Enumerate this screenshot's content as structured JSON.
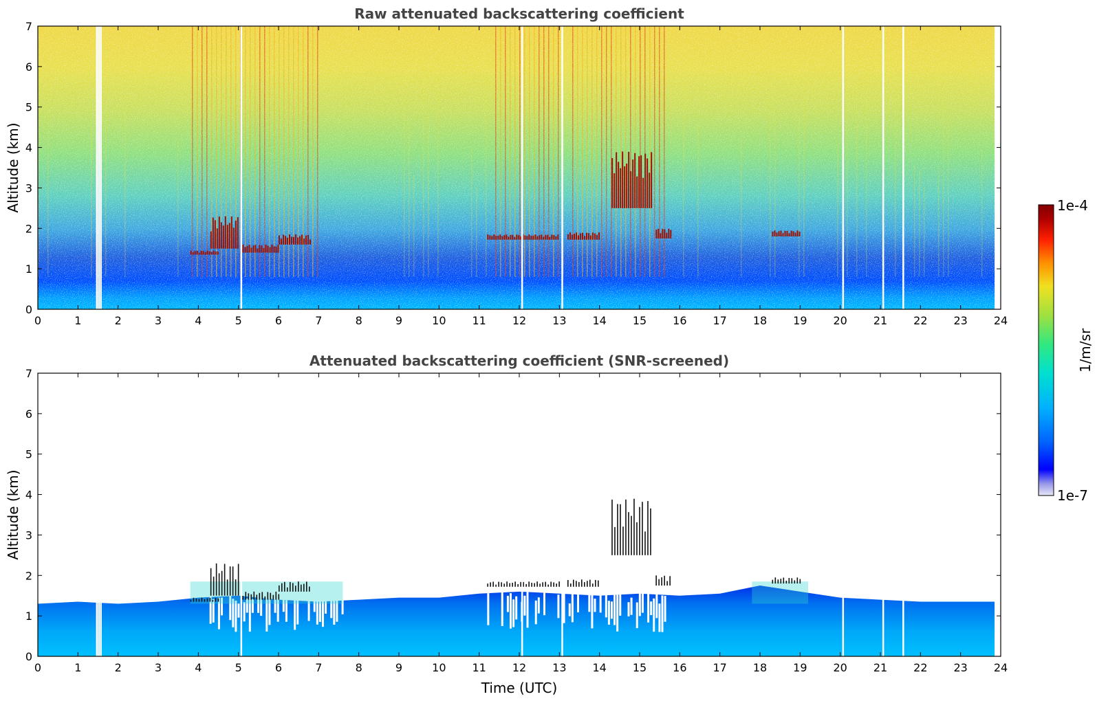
{
  "chart_data": [
    {
      "type": "heatmap",
      "title": "Raw attenuated backscattering coefficient",
      "xlabel": "",
      "ylabel": "Altitude (km)",
      "xlim": [
        0,
        24
      ],
      "ylim": [
        0,
        7
      ],
      "x_ticks": [
        0,
        1,
        2,
        3,
        4,
        5,
        6,
        7,
        8,
        9,
        10,
        11,
        12,
        13,
        14,
        15,
        16,
        17,
        18,
        19,
        20,
        21,
        22,
        23,
        24
      ],
      "y_ticks": [
        0,
        1,
        2,
        3,
        4,
        5,
        6,
        7
      ],
      "data_gaps_utc": [
        1.45,
        1.5,
        1.55,
        5.05,
        12.05,
        13.05,
        20.05,
        21.05,
        21.55,
        23.85
      ],
      "cloud_layers": [
        {
          "start": 3.8,
          "end": 4.5,
          "base_km": 1.35,
          "top_km": 1.45
        },
        {
          "start": 4.3,
          "end": 5.0,
          "base_km": 1.5,
          "top_km": 2.3
        },
        {
          "start": 5.1,
          "end": 6.0,
          "base_km": 1.4,
          "top_km": 1.6
        },
        {
          "start": 6.0,
          "end": 6.8,
          "base_km": 1.6,
          "top_km": 1.85
        },
        {
          "start": 11.2,
          "end": 13.0,
          "base_km": 1.72,
          "top_km": 1.85
        },
        {
          "start": 13.2,
          "end": 14.0,
          "base_km": 1.72,
          "top_km": 1.9
        },
        {
          "start": 14.3,
          "end": 15.3,
          "base_km": 2.5,
          "top_km": 3.9
        },
        {
          "start": 15.4,
          "end": 15.8,
          "base_km": 1.75,
          "top_km": 2.0
        },
        {
          "start": 18.3,
          "end": 19.0,
          "base_km": 1.8,
          "top_km": 1.95
        }
      ]
    },
    {
      "type": "heatmap",
      "title": "Attenuated backscattering coefficient (SNR-screened)",
      "xlabel": "Time (UTC)",
      "ylabel": "Altitude (km)",
      "xlim": [
        0,
        24
      ],
      "ylim": [
        0,
        7
      ],
      "x_ticks": [
        0,
        1,
        2,
        3,
        4,
        5,
        6,
        7,
        8,
        9,
        10,
        11,
        12,
        13,
        14,
        15,
        16,
        17,
        18,
        19,
        20,
        21,
        22,
        23,
        24
      ],
      "y_ticks": [
        0,
        1,
        2,
        3,
        4,
        5,
        6,
        7
      ],
      "data_gaps_utc": [
        1.45,
        1.5,
        1.55,
        5.05,
        12.05,
        13.05,
        20.05,
        21.05,
        21.55,
        23.85
      ],
      "boundary_layer_top_km": [
        [
          0,
          1.3
        ],
        [
          1,
          1.35
        ],
        [
          2,
          1.3
        ],
        [
          3,
          1.35
        ],
        [
          4,
          1.45
        ],
        [
          5,
          1.5
        ],
        [
          6,
          1.4
        ],
        [
          7,
          1.35
        ],
        [
          8,
          1.4
        ],
        [
          9,
          1.45
        ],
        [
          10,
          1.45
        ],
        [
          11,
          1.55
        ],
        [
          12,
          1.6
        ],
        [
          13,
          1.55
        ],
        [
          14,
          1.5
        ],
        [
          15,
          1.55
        ],
        [
          16,
          1.5
        ],
        [
          17,
          1.55
        ],
        [
          18,
          1.75
        ],
        [
          19,
          1.6
        ],
        [
          20,
          1.45
        ],
        [
          21,
          1.4
        ],
        [
          22,
          1.35
        ],
        [
          23,
          1.35
        ],
        [
          23.85,
          1.35
        ]
      ]
    }
  ],
  "colorbar": {
    "label": "1/m/sr",
    "max_label": "1e-4",
    "min_label": "1e-7",
    "scale": "log",
    "colormap": [
      "#e8e8f8",
      "#9898e8",
      "#0000ff",
      "#0060ff",
      "#00b0ff",
      "#00e0d0",
      "#30e880",
      "#a0e040",
      "#f0e020",
      "#ff9000",
      "#ff2000",
      "#b00000",
      "#800000"
    ]
  }
}
